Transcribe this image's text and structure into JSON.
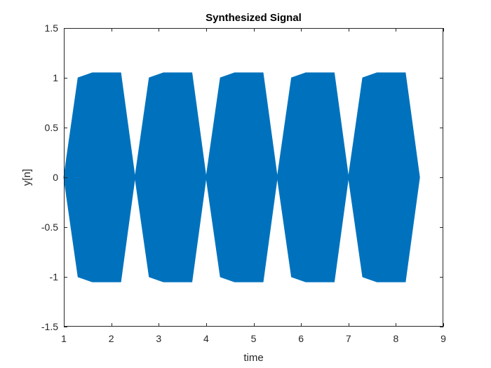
{
  "chart_data": {
    "type": "area",
    "title": "Synthesized Signal",
    "xlabel": "time",
    "ylabel": "y[n]",
    "xlim": [
      1,
      9
    ],
    "ylim": [
      -1.5,
      1.5
    ],
    "xticks": [
      1,
      2,
      3,
      4,
      5,
      6,
      7,
      8,
      9
    ],
    "xtick_labels": [
      "1",
      "2",
      "3",
      "4",
      "5",
      "6",
      "7",
      "8",
      "9"
    ],
    "yticks": [
      1.5,
      1,
      0.5,
      0,
      -0.5,
      -1,
      -1.5
    ],
    "ytick_labels": [
      "1.5",
      "1",
      "0.5",
      "0",
      "-0.5",
      "-1",
      "-1.5"
    ],
    "grid": false,
    "legend": "none",
    "series": [
      {
        "color": "#0072BD",
        "envelope_upper": [
          {
            "x": 1.0,
            "y": 0.0
          },
          {
            "x": 1.3,
            "y": 1.0
          },
          {
            "x": 1.6,
            "y": 1.05
          },
          {
            "x": 2.2,
            "y": 1.05
          },
          {
            "x": 2.5,
            "y": 0.0
          },
          {
            "x": 2.8,
            "y": 1.0
          },
          {
            "x": 3.1,
            "y": 1.05
          },
          {
            "x": 3.7,
            "y": 1.05
          },
          {
            "x": 4.0,
            "y": 0.0
          },
          {
            "x": 4.3,
            "y": 1.0
          },
          {
            "x": 4.6,
            "y": 1.05
          },
          {
            "x": 5.2,
            "y": 1.05
          },
          {
            "x": 5.5,
            "y": 0.0
          },
          {
            "x": 5.8,
            "y": 1.0
          },
          {
            "x": 6.1,
            "y": 1.05
          },
          {
            "x": 6.7,
            "y": 1.05
          },
          {
            "x": 7.0,
            "y": 0.0
          },
          {
            "x": 7.3,
            "y": 1.0
          },
          {
            "x": 7.6,
            "y": 1.05
          },
          {
            "x": 8.2,
            "y": 1.05
          },
          {
            "x": 8.5,
            "y": 0.0
          }
        ],
        "envelope_lower": [
          {
            "x": 1.0,
            "y": 0.0
          },
          {
            "x": 1.3,
            "y": -1.0
          },
          {
            "x": 1.6,
            "y": -1.05
          },
          {
            "x": 2.2,
            "y": -1.05
          },
          {
            "x": 2.5,
            "y": 0.0
          },
          {
            "x": 2.8,
            "y": -1.0
          },
          {
            "x": 3.1,
            "y": -1.05
          },
          {
            "x": 3.7,
            "y": -1.05
          },
          {
            "x": 4.0,
            "y": 0.0
          },
          {
            "x": 4.3,
            "y": -1.0
          },
          {
            "x": 4.6,
            "y": -1.05
          },
          {
            "x": 5.2,
            "y": -1.05
          },
          {
            "x": 5.5,
            "y": 0.0
          },
          {
            "x": 5.8,
            "y": -1.0
          },
          {
            "x": 6.1,
            "y": -1.05
          },
          {
            "x": 6.7,
            "y": -1.05
          },
          {
            "x": 7.0,
            "y": 0.0
          },
          {
            "x": 7.3,
            "y": -1.0
          },
          {
            "x": 7.6,
            "y": -1.05
          },
          {
            "x": 8.2,
            "y": -1.05
          },
          {
            "x": 8.5,
            "y": 0.0
          }
        ]
      }
    ]
  }
}
